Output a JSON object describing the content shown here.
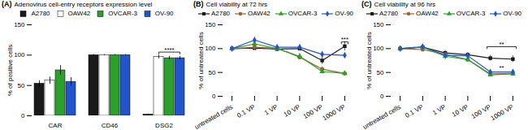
{
  "chart_data": [
    {
      "type": "bar",
      "panel_label": "(A)",
      "title": "Adenovirus cell-entry receptors expression level",
      "ylabel": "% of positive cells",
      "categories": [
        "CAR",
        "CD46",
        "DSG2"
      ],
      "series": [
        {
          "name": "A2780",
          "color": "#1a1a1a",
          "values": [
            53,
            100,
            2
          ],
          "errors": [
            5,
            1,
            1
          ]
        },
        {
          "name": "OAW42",
          "color": "#ffffff",
          "values": [
            58,
            100,
            97
          ],
          "errors": [
            6,
            1,
            3
          ]
        },
        {
          "name": "OVCAR-3",
          "color": "#2ca02c",
          "values": [
            75,
            100,
            95
          ],
          "errors": [
            8,
            1,
            3
          ]
        },
        {
          "name": "OV-90",
          "color": "#2255cc",
          "values": [
            56,
            100,
            95
          ],
          "errors": [
            7,
            1,
            3
          ]
        }
      ],
      "ylim": [
        0,
        150
      ],
      "yticks": [
        0,
        50,
        100,
        150
      ],
      "grid": false,
      "legend": "top",
      "annotations": [
        {
          "text": "****",
          "x": "DSG2",
          "series": [
            "OAW42",
            "OV-90"
          ],
          "y": 102,
          "bracket": true
        }
      ]
    },
    {
      "type": "line",
      "panel_label": "(B)",
      "title": "Cell viability at 72 hrs",
      "ylabel": "% of untreated cells",
      "categories": [
        "untreated cells",
        "0.1 VP",
        "1 VP",
        "10 VP",
        "100 VP",
        "1000 VP"
      ],
      "series": [
        {
          "name": "A2780",
          "color": "#1a1a1a",
          "marker": "square",
          "values": [
            100,
            101,
            99,
            100,
            75,
            105
          ],
          "errors": [
            3,
            4,
            3,
            5,
            8,
            10
          ]
        },
        {
          "name": "OAW42",
          "color": "#996633",
          "marker": "circle",
          "values": [
            100,
            103,
            101,
            82,
            57,
            48
          ],
          "errors": [
            3,
            3,
            3,
            5,
            5,
            5
          ]
        },
        {
          "name": "OVCAR-3",
          "color": "#2ca02c",
          "marker": "triangle",
          "values": [
            100,
            110,
            100,
            84,
            52,
            48
          ],
          "errors": [
            3,
            5,
            4,
            6,
            5,
            5
          ]
        },
        {
          "name": "OV-90",
          "color": "#2255cc",
          "marker": "diamond",
          "values": [
            100,
            118,
            103,
            103,
            88,
            86
          ],
          "errors": [
            3,
            6,
            5,
            5,
            6,
            6
          ]
        }
      ],
      "ylim": [
        0,
        150
      ],
      "yticks": [
        0,
        50,
        100,
        150
      ],
      "grid": false,
      "legend": "top",
      "annotations": [
        {
          "text": "***",
          "x": [
            "1000 VP"
          ],
          "y": 110,
          "bracket": true
        }
      ]
    },
    {
      "type": "line",
      "panel_label": "(C)",
      "title": "Cell viability at 96 hrs",
      "ylabel": "% of untreated cells",
      "categories": [
        "untreated cells",
        "0.1 VP",
        "1 VP",
        "10 VP",
        "100 VP",
        "1000 VP"
      ],
      "series": [
        {
          "name": "A2780",
          "color": "#1a1a1a",
          "marker": "square",
          "values": [
            100,
            103,
            91,
            87,
            80,
            78
          ],
          "errors": [
            3,
            4,
            5,
            5,
            6,
            7
          ]
        },
        {
          "name": "OAW42",
          "color": "#996633",
          "marker": "circle",
          "values": [
            100,
            98,
            88,
            77,
            47,
            48
          ],
          "errors": [
            3,
            3,
            4,
            5,
            4,
            4
          ]
        },
        {
          "name": "OVCAR-3",
          "color": "#2ca02c",
          "marker": "triangle",
          "values": [
            100,
            103,
            84,
            77,
            45,
            47
          ],
          "errors": [
            3,
            6,
            8,
            5,
            4,
            5
          ]
        },
        {
          "name": "OV-90",
          "color": "#2255cc",
          "marker": "diamond",
          "values": [
            100,
            104,
            86,
            85,
            51,
            51
          ],
          "errors": [
            3,
            5,
            5,
            5,
            5,
            5
          ]
        }
      ],
      "ylim": [
        0,
        150
      ],
      "yticks": [
        0,
        50,
        100,
        150
      ],
      "grid": false,
      "legend": "top",
      "annotations": [
        {
          "text": "**",
          "x": [
            "100 VP",
            "1000 VP"
          ],
          "y": 100,
          "bracket": true
        },
        {
          "text": "**",
          "x": [
            "100 VP",
            "1000 VP"
          ],
          "y": 56,
          "bracket": false
        }
      ]
    }
  ]
}
